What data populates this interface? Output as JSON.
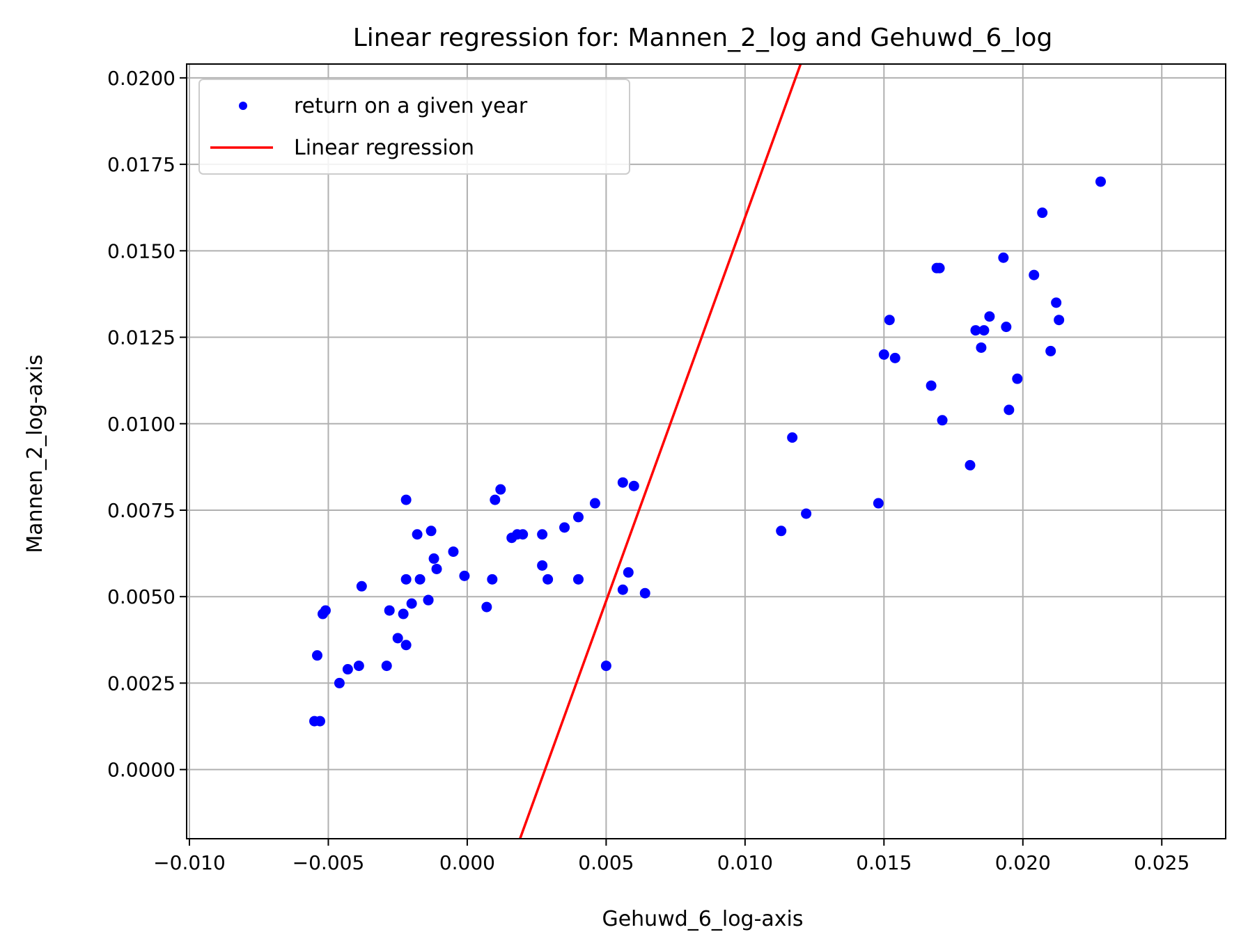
{
  "chart_data": {
    "type": "scatter",
    "title": "Linear regression for: Mannen_2_log and Gehuwd_6_log",
    "xlabel": "Gehuwd_6_log-axis",
    "ylabel": "Mannen_2_log-axis",
    "xlim": [
      -0.0101,
      0.0273
    ],
    "ylim": [
      -0.002,
      0.0204
    ],
    "xticks": [
      -0.01,
      -0.005,
      0.0,
      0.005,
      0.01,
      0.015,
      0.02,
      0.025
    ],
    "xtick_labels": [
      "−0.010",
      "−0.005",
      "0.000",
      "0.005",
      "0.010",
      "0.015",
      "0.020",
      "0.025"
    ],
    "yticks": [
      0.0,
      0.0025,
      0.005,
      0.0075,
      0.01,
      0.0125,
      0.015,
      0.0175,
      0.02
    ],
    "ytick_labels": [
      "0.0000",
      "0.0025",
      "0.0050",
      "0.0075",
      "0.0100",
      "0.0125",
      "0.0150",
      "0.0175",
      "0.0200"
    ],
    "grid": true,
    "legend_position": "top-left",
    "series": [
      {
        "name": "return on a given year",
        "kind": "scatter",
        "color": "#0000ff",
        "points": [
          [
            -0.0055,
            0.0014
          ],
          [
            -0.0053,
            0.0014
          ],
          [
            -0.0054,
            0.0033
          ],
          [
            -0.0046,
            0.0025
          ],
          [
            -0.0043,
            0.0029
          ],
          [
            -0.0039,
            0.003
          ],
          [
            -0.0052,
            0.0045
          ],
          [
            -0.0051,
            0.0046
          ],
          [
            -0.0038,
            0.0053
          ],
          [
            -0.0029,
            0.003
          ],
          [
            -0.0028,
            0.0046
          ],
          [
            -0.0025,
            0.0038
          ],
          [
            -0.0023,
            0.0045
          ],
          [
            -0.0022,
            0.0036
          ],
          [
            -0.0022,
            0.0055
          ],
          [
            -0.0022,
            0.0078
          ],
          [
            -0.002,
            0.0048
          ],
          [
            -0.0018,
            0.0068
          ],
          [
            -0.0017,
            0.0055
          ],
          [
            -0.0014,
            0.0049
          ],
          [
            -0.0014,
            0.0049
          ],
          [
            -0.0013,
            0.0069
          ],
          [
            -0.0012,
            0.0061
          ],
          [
            -0.0011,
            0.0058
          ],
          [
            -0.0005,
            0.0063
          ],
          [
            -0.0001,
            0.0056
          ],
          [
            0.0007,
            0.0047
          ],
          [
            0.0009,
            0.0055
          ],
          [
            0.001,
            0.0078
          ],
          [
            0.0012,
            0.0081
          ],
          [
            0.0016,
            0.0067
          ],
          [
            0.0018,
            0.0068
          ],
          [
            0.002,
            0.0068
          ],
          [
            0.0027,
            0.0068
          ],
          [
            0.0027,
            0.0059
          ],
          [
            0.0029,
            0.0055
          ],
          [
            0.0035,
            0.007
          ],
          [
            0.004,
            0.0073
          ],
          [
            0.004,
            0.0055
          ],
          [
            0.0046,
            0.0077
          ],
          [
            0.005,
            0.003
          ],
          [
            0.0056,
            0.0083
          ],
          [
            0.0056,
            0.0052
          ],
          [
            0.0058,
            0.0057
          ],
          [
            0.006,
            0.0082
          ],
          [
            0.0064,
            0.0051
          ],
          [
            0.0113,
            0.0069
          ],
          [
            0.0117,
            0.0096
          ],
          [
            0.0122,
            0.0074
          ],
          [
            0.0148,
            0.0077
          ],
          [
            0.015,
            0.012
          ],
          [
            0.0152,
            0.013
          ],
          [
            0.0154,
            0.0119
          ],
          [
            0.0167,
            0.0111
          ],
          [
            0.0169,
            0.0145
          ],
          [
            0.017,
            0.0145
          ],
          [
            0.0171,
            0.0101
          ],
          [
            0.0181,
            0.0088
          ],
          [
            0.0183,
            0.0127
          ],
          [
            0.0185,
            0.0122
          ],
          [
            0.0186,
            0.0127
          ],
          [
            0.0188,
            0.0131
          ],
          [
            0.0193,
            0.0148
          ],
          [
            0.0194,
            0.0128
          ],
          [
            0.0195,
            0.0104
          ],
          [
            0.0198,
            0.0113
          ],
          [
            0.0204,
            0.0143
          ],
          [
            0.0207,
            0.0161
          ],
          [
            0.021,
            0.0121
          ],
          [
            0.0212,
            0.0135
          ],
          [
            0.0213,
            0.013
          ],
          [
            0.0228,
            0.017
          ]
        ]
      },
      {
        "name": "Linear regression",
        "kind": "line",
        "color": "#ff0000",
        "points": [
          [
            0.0019,
            -0.002
          ],
          [
            0.012,
            0.0204
          ]
        ]
      }
    ]
  }
}
